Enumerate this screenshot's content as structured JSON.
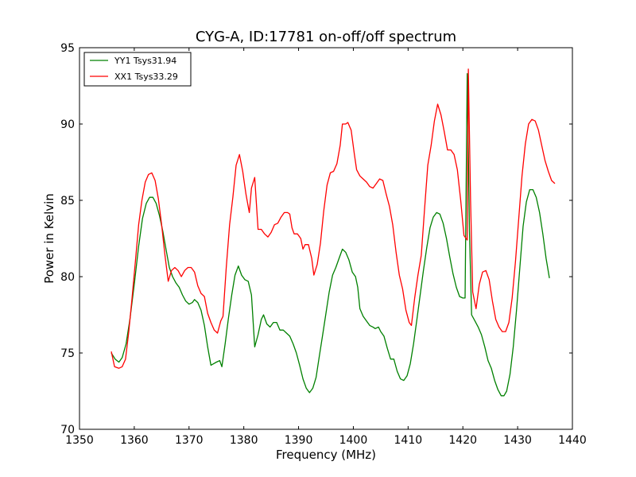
{
  "chart_data": {
    "type": "line",
    "title": "CYG-A, ID:17781 on-off/off spectrum",
    "xlabel": "Frequency (MHz)",
    "ylabel": "Power in Kelvin",
    "xlim": [
      1350,
      1440
    ],
    "ylim": [
      70,
      95
    ],
    "xticks": [
      1350,
      1360,
      1370,
      1380,
      1390,
      1400,
      1410,
      1420,
      1430,
      1440
    ],
    "yticks": [
      70,
      75,
      80,
      85,
      90,
      95
    ],
    "grid": false,
    "legend_position": "top-left",
    "series": [
      {
        "name": "YY1 Tsys31.94",
        "color": "#008000",
        "points": [
          [
            1355.8,
            75.0
          ],
          [
            1356.5,
            74.6
          ],
          [
            1357.2,
            74.4
          ],
          [
            1357.8,
            74.7
          ],
          [
            1358.5,
            75.6
          ],
          [
            1359.2,
            77.2
          ],
          [
            1360.0,
            79.5
          ],
          [
            1360.8,
            82.0
          ],
          [
            1361.5,
            83.8
          ],
          [
            1362.2,
            84.8
          ],
          [
            1362.8,
            85.2
          ],
          [
            1363.4,
            85.2
          ],
          [
            1364.0,
            84.8
          ],
          [
            1364.6,
            84.0
          ],
          [
            1365.2,
            83.0
          ],
          [
            1365.8,
            81.8
          ],
          [
            1366.4,
            80.6
          ],
          [
            1367.0,
            80.0
          ],
          [
            1367.6,
            79.6
          ],
          [
            1368.2,
            79.3
          ],
          [
            1368.8,
            78.8
          ],
          [
            1369.4,
            78.4
          ],
          [
            1370.0,
            78.2
          ],
          [
            1370.6,
            78.3
          ],
          [
            1371.0,
            78.5
          ],
          [
            1371.6,
            78.3
          ],
          [
            1372.2,
            77.8
          ],
          [
            1372.8,
            76.8
          ],
          [
            1373.4,
            75.4
          ],
          [
            1374.0,
            74.2
          ],
          [
            1374.5,
            74.3
          ],
          [
            1375.0,
            74.4
          ],
          [
            1375.6,
            74.5
          ],
          [
            1376.0,
            74.1
          ],
          [
            1376.6,
            75.6
          ],
          [
            1377.2,
            77.3
          ],
          [
            1377.8,
            78.8
          ],
          [
            1378.4,
            80.1
          ],
          [
            1379.0,
            80.7
          ],
          [
            1379.6,
            80.1
          ],
          [
            1380.2,
            79.8
          ],
          [
            1380.8,
            79.7
          ],
          [
            1381.4,
            78.8
          ],
          [
            1382.0,
            75.4
          ],
          [
            1382.6,
            76.2
          ],
          [
            1383.2,
            77.2
          ],
          [
            1383.6,
            77.5
          ],
          [
            1384.2,
            76.9
          ],
          [
            1384.8,
            76.7
          ],
          [
            1385.4,
            77.0
          ],
          [
            1386.0,
            77.0
          ],
          [
            1386.6,
            76.5
          ],
          [
            1387.2,
            76.5
          ],
          [
            1387.8,
            76.3
          ],
          [
            1388.4,
            76.1
          ],
          [
            1389.0,
            75.6
          ],
          [
            1389.6,
            75.0
          ],
          [
            1390.2,
            74.2
          ],
          [
            1390.8,
            73.3
          ],
          [
            1391.4,
            72.7
          ],
          [
            1392.0,
            72.4
          ],
          [
            1392.6,
            72.7
          ],
          [
            1393.2,
            73.4
          ],
          [
            1393.8,
            74.8
          ],
          [
            1394.4,
            76.2
          ],
          [
            1395.0,
            77.6
          ],
          [
            1395.6,
            79.0
          ],
          [
            1396.2,
            80.1
          ],
          [
            1396.8,
            80.6
          ],
          [
            1397.4,
            81.2
          ],
          [
            1398.0,
            81.8
          ],
          [
            1398.6,
            81.6
          ],
          [
            1399.2,
            81.1
          ],
          [
            1399.8,
            80.3
          ],
          [
            1400.4,
            80.0
          ],
          [
            1400.8,
            79.3
          ],
          [
            1401.2,
            77.9
          ],
          [
            1401.8,
            77.4
          ],
          [
            1402.4,
            77.1
          ],
          [
            1403.0,
            76.8
          ],
          [
            1403.6,
            76.7
          ],
          [
            1404.0,
            76.6
          ],
          [
            1404.6,
            76.7
          ],
          [
            1405.0,
            76.4
          ],
          [
            1405.6,
            76.1
          ],
          [
            1406.2,
            75.3
          ],
          [
            1406.8,
            74.6
          ],
          [
            1407.4,
            74.6
          ],
          [
            1408.0,
            73.8
          ],
          [
            1408.6,
            73.3
          ],
          [
            1409.2,
            73.2
          ],
          [
            1409.8,
            73.5
          ],
          [
            1410.4,
            74.3
          ],
          [
            1411.0,
            75.6
          ],
          [
            1411.6,
            77.2
          ],
          [
            1412.2,
            78.8
          ],
          [
            1412.8,
            80.4
          ],
          [
            1413.4,
            81.9
          ],
          [
            1414.0,
            83.2
          ],
          [
            1414.6,
            83.9
          ],
          [
            1415.2,
            84.2
          ],
          [
            1415.8,
            84.1
          ],
          [
            1416.4,
            83.5
          ],
          [
            1417.0,
            82.5
          ],
          [
            1417.6,
            81.3
          ],
          [
            1418.2,
            80.2
          ],
          [
            1418.8,
            79.3
          ],
          [
            1419.4,
            78.7
          ],
          [
            1420.0,
            78.6
          ],
          [
            1420.4,
            78.6
          ],
          [
            1420.8,
            93.3
          ],
          [
            1421.2,
            83.0
          ],
          [
            1421.6,
            77.5
          ],
          [
            1422.2,
            77.1
          ],
          [
            1422.8,
            76.7
          ],
          [
            1423.4,
            76.2
          ],
          [
            1424.0,
            75.4
          ],
          [
            1424.6,
            74.5
          ],
          [
            1425.2,
            74.0
          ],
          [
            1425.8,
            73.2
          ],
          [
            1426.4,
            72.6
          ],
          [
            1427.0,
            72.2
          ],
          [
            1427.5,
            72.2
          ],
          [
            1428.0,
            72.5
          ],
          [
            1428.6,
            73.6
          ],
          [
            1429.2,
            75.4
          ],
          [
            1429.8,
            77.8
          ],
          [
            1430.4,
            80.6
          ],
          [
            1431.0,
            83.3
          ],
          [
            1431.6,
            84.9
          ],
          [
            1432.2,
            85.7
          ],
          [
            1432.8,
            85.7
          ],
          [
            1433.4,
            85.2
          ],
          [
            1434.0,
            84.2
          ],
          [
            1434.6,
            82.8
          ],
          [
            1435.2,
            81.2
          ],
          [
            1435.8,
            79.9
          ]
        ]
      },
      {
        "name": "XX1 Tsys33.29",
        "color": "#ff0000",
        "points": [
          [
            1355.8,
            75.1
          ],
          [
            1356.4,
            74.1
          ],
          [
            1357.2,
            74.0
          ],
          [
            1357.8,
            74.1
          ],
          [
            1358.4,
            74.6
          ],
          [
            1359.0,
            76.4
          ],
          [
            1359.6,
            78.6
          ],
          [
            1360.2,
            81.0
          ],
          [
            1360.8,
            83.4
          ],
          [
            1361.4,
            85.0
          ],
          [
            1362.0,
            86.2
          ],
          [
            1362.6,
            86.7
          ],
          [
            1363.2,
            86.8
          ],
          [
            1363.8,
            86.3
          ],
          [
            1364.4,
            85.1
          ],
          [
            1365.0,
            83.4
          ],
          [
            1365.6,
            81.4
          ],
          [
            1366.2,
            79.7
          ],
          [
            1366.8,
            80.4
          ],
          [
            1367.4,
            80.6
          ],
          [
            1368.0,
            80.4
          ],
          [
            1368.6,
            80.0
          ],
          [
            1369.2,
            80.4
          ],
          [
            1369.8,
            80.6
          ],
          [
            1370.4,
            80.6
          ],
          [
            1371.0,
            80.3
          ],
          [
            1371.6,
            79.4
          ],
          [
            1372.2,
            78.9
          ],
          [
            1372.8,
            78.7
          ],
          [
            1373.4,
            77.6
          ],
          [
            1374.0,
            77.0
          ],
          [
            1374.6,
            76.5
          ],
          [
            1375.2,
            76.3
          ],
          [
            1375.8,
            77.1
          ],
          [
            1376.2,
            77.4
          ],
          [
            1376.8,
            80.6
          ],
          [
            1377.4,
            83.4
          ],
          [
            1378.0,
            85.2
          ],
          [
            1378.6,
            87.3
          ],
          [
            1379.2,
            88.0
          ],
          [
            1379.8,
            86.9
          ],
          [
            1380.4,
            85.4
          ],
          [
            1381.0,
            84.2
          ],
          [
            1381.4,
            85.8
          ],
          [
            1382.0,
            86.5
          ],
          [
            1382.6,
            83.1
          ],
          [
            1383.2,
            83.1
          ],
          [
            1383.8,
            82.8
          ],
          [
            1384.4,
            82.6
          ],
          [
            1385.0,
            82.9
          ],
          [
            1385.6,
            83.4
          ],
          [
            1386.2,
            83.5
          ],
          [
            1386.8,
            83.9
          ],
          [
            1387.4,
            84.2
          ],
          [
            1388.0,
            84.2
          ],
          [
            1388.4,
            84.1
          ],
          [
            1388.8,
            83.2
          ],
          [
            1389.2,
            82.8
          ],
          [
            1389.8,
            82.8
          ],
          [
            1390.4,
            82.5
          ],
          [
            1390.8,
            81.8
          ],
          [
            1391.2,
            82.1
          ],
          [
            1391.8,
            82.1
          ],
          [
            1392.4,
            81.2
          ],
          [
            1392.8,
            80.1
          ],
          [
            1393.4,
            80.8
          ],
          [
            1394.0,
            82.2
          ],
          [
            1394.6,
            84.3
          ],
          [
            1395.2,
            86.0
          ],
          [
            1395.8,
            86.8
          ],
          [
            1396.4,
            86.9
          ],
          [
            1397.0,
            87.4
          ],
          [
            1397.6,
            88.6
          ],
          [
            1398.0,
            90.0
          ],
          [
            1398.6,
            90.0
          ],
          [
            1399.0,
            90.1
          ],
          [
            1399.6,
            89.6
          ],
          [
            1400.2,
            88.0
          ],
          [
            1400.6,
            87.0
          ],
          [
            1401.2,
            86.6
          ],
          [
            1401.8,
            86.4
          ],
          [
            1402.4,
            86.2
          ],
          [
            1403.0,
            85.9
          ],
          [
            1403.6,
            85.8
          ],
          [
            1404.2,
            86.1
          ],
          [
            1404.8,
            86.4
          ],
          [
            1405.4,
            86.3
          ],
          [
            1406.0,
            85.4
          ],
          [
            1406.6,
            84.6
          ],
          [
            1407.2,
            83.4
          ],
          [
            1407.8,
            81.6
          ],
          [
            1408.4,
            80.1
          ],
          [
            1409.0,
            79.2
          ],
          [
            1409.6,
            77.8
          ],
          [
            1410.2,
            77.0
          ],
          [
            1410.6,
            76.8
          ],
          [
            1411.2,
            78.6
          ],
          [
            1411.8,
            80.1
          ],
          [
            1412.4,
            81.4
          ],
          [
            1413.0,
            84.4
          ],
          [
            1413.6,
            87.3
          ],
          [
            1414.2,
            88.6
          ],
          [
            1414.8,
            90.2
          ],
          [
            1415.4,
            91.3
          ],
          [
            1416.0,
            90.6
          ],
          [
            1416.6,
            89.5
          ],
          [
            1417.2,
            88.3
          ],
          [
            1417.8,
            88.3
          ],
          [
            1418.4,
            88.0
          ],
          [
            1419.0,
            87.0
          ],
          [
            1419.6,
            85.0
          ],
          [
            1420.2,
            82.7
          ],
          [
            1420.8,
            82.4
          ],
          [
            1421.0,
            93.6
          ],
          [
            1421.4,
            85.0
          ],
          [
            1421.8,
            79.0
          ],
          [
            1422.4,
            77.9
          ],
          [
            1423.0,
            79.5
          ],
          [
            1423.6,
            80.3
          ],
          [
            1424.2,
            80.4
          ],
          [
            1424.8,
            79.8
          ],
          [
            1425.4,
            78.4
          ],
          [
            1426.0,
            77.2
          ],
          [
            1426.6,
            76.7
          ],
          [
            1427.2,
            76.4
          ],
          [
            1427.8,
            76.4
          ],
          [
            1428.4,
            77.0
          ],
          [
            1429.0,
            78.6
          ],
          [
            1429.6,
            81.0
          ],
          [
            1430.2,
            83.8
          ],
          [
            1430.8,
            86.6
          ],
          [
            1431.4,
            88.7
          ],
          [
            1432.0,
            90.0
          ],
          [
            1432.6,
            90.3
          ],
          [
            1433.2,
            90.2
          ],
          [
            1433.8,
            89.6
          ],
          [
            1434.4,
            88.6
          ],
          [
            1435.0,
            87.6
          ],
          [
            1435.6,
            86.9
          ],
          [
            1436.2,
            86.3
          ],
          [
            1436.8,
            86.1
          ]
        ]
      }
    ]
  }
}
